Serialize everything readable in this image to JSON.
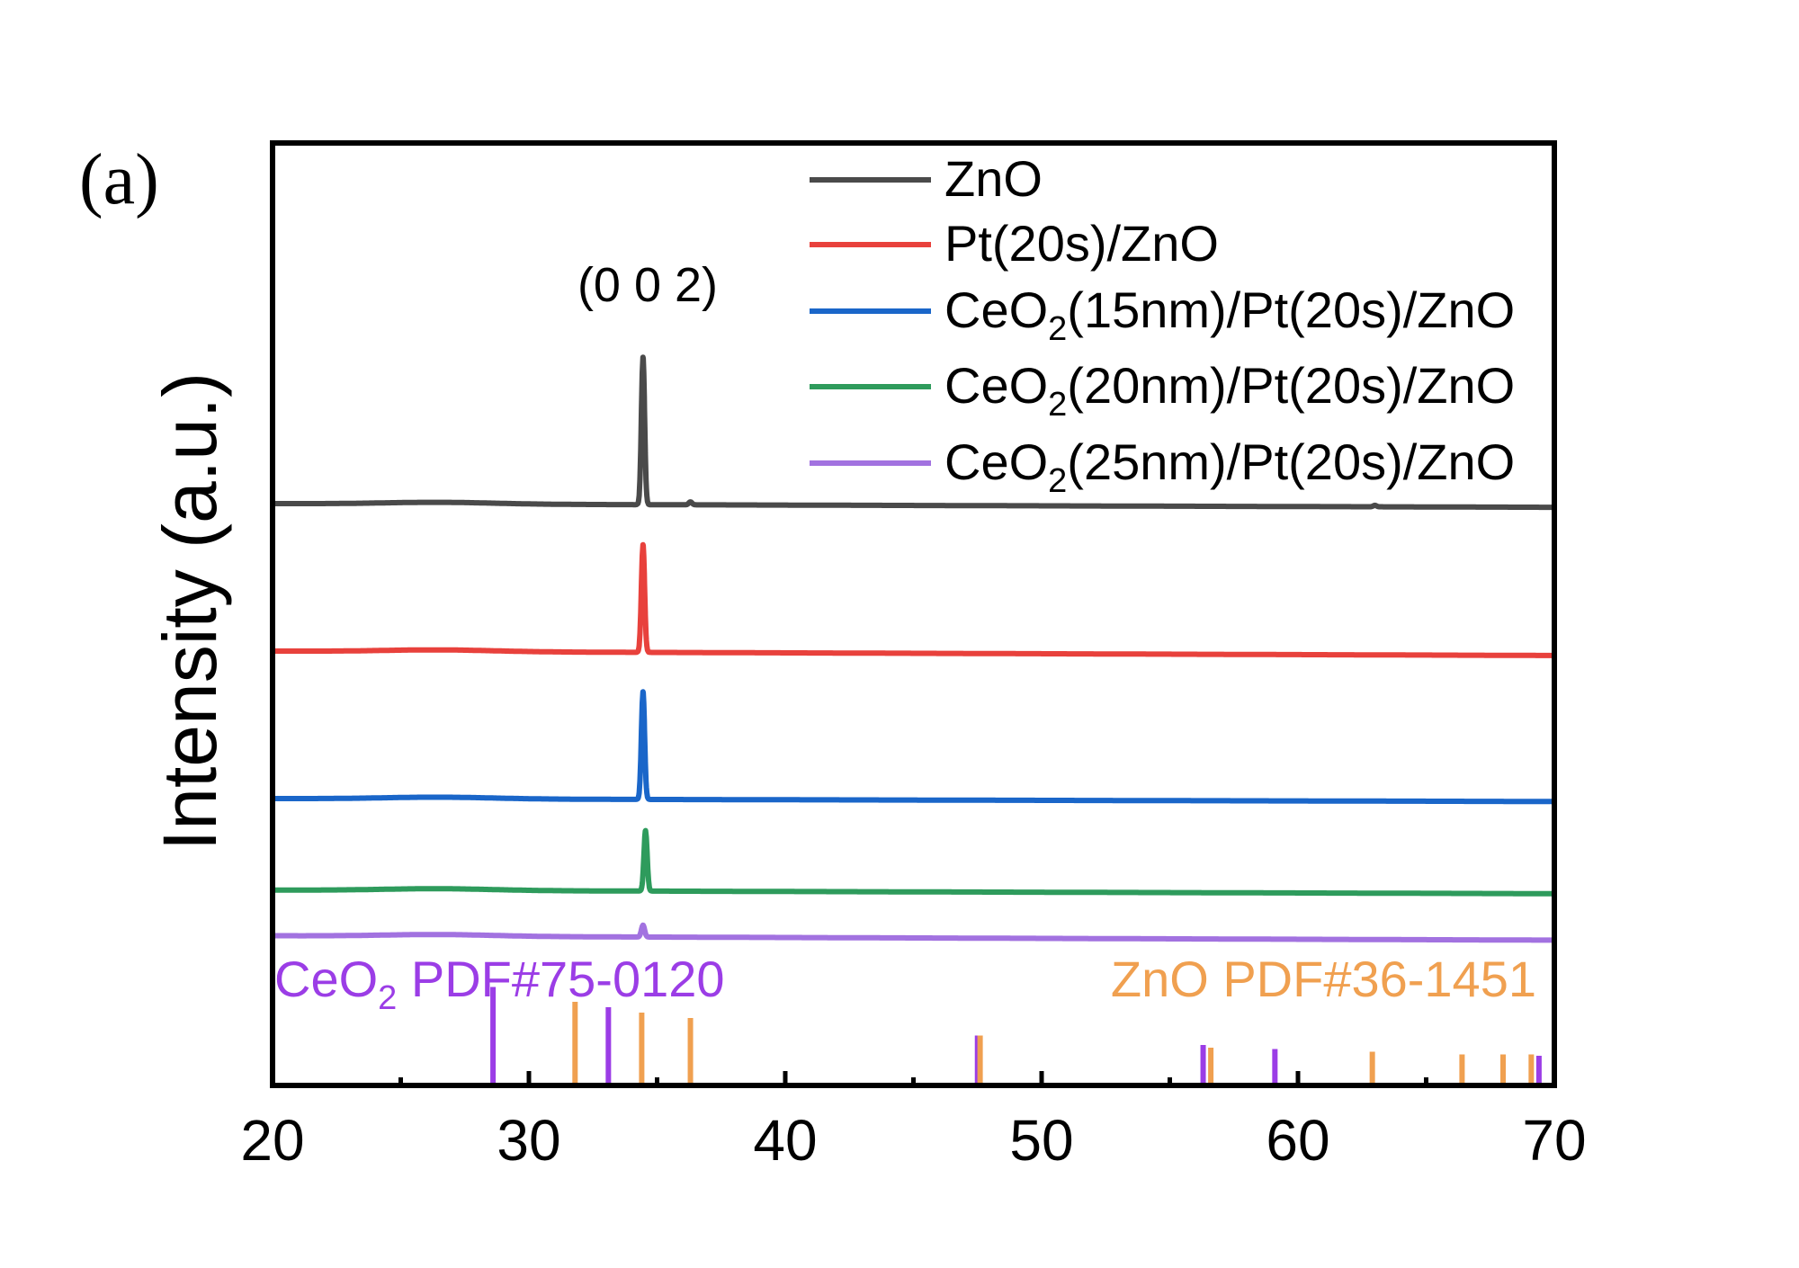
{
  "panel_label": "(a)",
  "chart_data": {
    "type": "line",
    "title": "",
    "xlabel": "",
    "ylabel": "Intensity (a.u.)",
    "xlim": [
      20,
      70
    ],
    "x_ticks": [
      20,
      30,
      40,
      50,
      60,
      70
    ],
    "peak_annotation": {
      "label": "(0 0 2)",
      "x": 34.5
    },
    "legend_placement": "top-right",
    "series": [
      {
        "name": "ZnO",
        "name_main": "ZnO",
        "name_sub": "",
        "name_rest": "",
        "color": "#4a4a4a",
        "baseline": 1.0,
        "end_baseline": 0.975,
        "peaks": [
          {
            "x": 34.45,
            "h": 1.0
          },
          {
            "x": 36.3,
            "h": 0.02
          },
          {
            "x": 63.0,
            "h": 0.01
          }
        ]
      },
      {
        "name": "Pt(20s)/ZnO",
        "name_main": "Pt(20s)/ZnO",
        "name_sub": "",
        "name_rest": "",
        "color": "#e8413c",
        "baseline": 0.0,
        "end_baseline": -0.03,
        "peaks": [
          {
            "x": 34.45,
            "h": 0.73
          }
        ]
      },
      {
        "name": "CeO2(15nm)/Pt(20s)/ZnO",
        "name_main": "CeO",
        "name_sub": "2",
        "name_rest": "(15nm)/Pt(20s)/ZnO",
        "color": "#1a66c9",
        "baseline": -1.0,
        "end_baseline": -1.02,
        "peaks": [
          {
            "x": 34.45,
            "h": 0.73
          }
        ]
      },
      {
        "name": "CeO2(20nm)/Pt(20s)/ZnO",
        "name_main": "CeO",
        "name_sub": "2",
        "name_rest": "(20nm)/Pt(20s)/ZnO",
        "color": "#2e9b5c",
        "baseline": -1.62,
        "end_baseline": -1.645,
        "peaks": [
          {
            "x": 34.55,
            "h": 0.41
          }
        ]
      },
      {
        "name": "CeO2(25nm)/Pt(20s)/ZnO",
        "name_main": "CeO",
        "name_sub": "2",
        "name_rest": "(25nm)/Pt(20s)/ZnO",
        "color": "#a272e0",
        "baseline": -1.93,
        "end_baseline": -1.96,
        "peaks": [
          {
            "x": 34.45,
            "h": 0.08
          }
        ]
      }
    ],
    "reference_patterns": [
      {
        "name": "CeO2 PDF#75-0120",
        "label_main": "CeO",
        "label_sub": "2",
        "label_rest": " PDF#75-0120",
        "color": "#9b3de6",
        "label_position": "left",
        "lines": [
          {
            "x": 28.6,
            "h": 0.73
          },
          {
            "x": 33.1,
            "h": 0.58
          },
          {
            "x": 47.5,
            "h": 0.37
          },
          {
            "x": 56.3,
            "h": 0.3
          },
          {
            "x": 59.1,
            "h": 0.27
          },
          {
            "x": 69.4,
            "h": 0.22
          }
        ]
      },
      {
        "name": "ZnO PDF#36-1451",
        "label_main": "ZnO PDF#36-1451",
        "label_sub": "",
        "label_rest": "",
        "color": "#f0a050",
        "label_position": "right",
        "lines": [
          {
            "x": 31.8,
            "h": 0.62
          },
          {
            "x": 34.4,
            "h": 0.54
          },
          {
            "x": 36.3,
            "h": 0.5
          },
          {
            "x": 47.6,
            "h": 0.37
          },
          {
            "x": 56.6,
            "h": 0.28
          },
          {
            "x": 62.9,
            "h": 0.25
          },
          {
            "x": 66.4,
            "h": 0.23
          },
          {
            "x": 68.0,
            "h": 0.23
          },
          {
            "x": 69.1,
            "h": 0.23
          }
        ]
      }
    ]
  }
}
